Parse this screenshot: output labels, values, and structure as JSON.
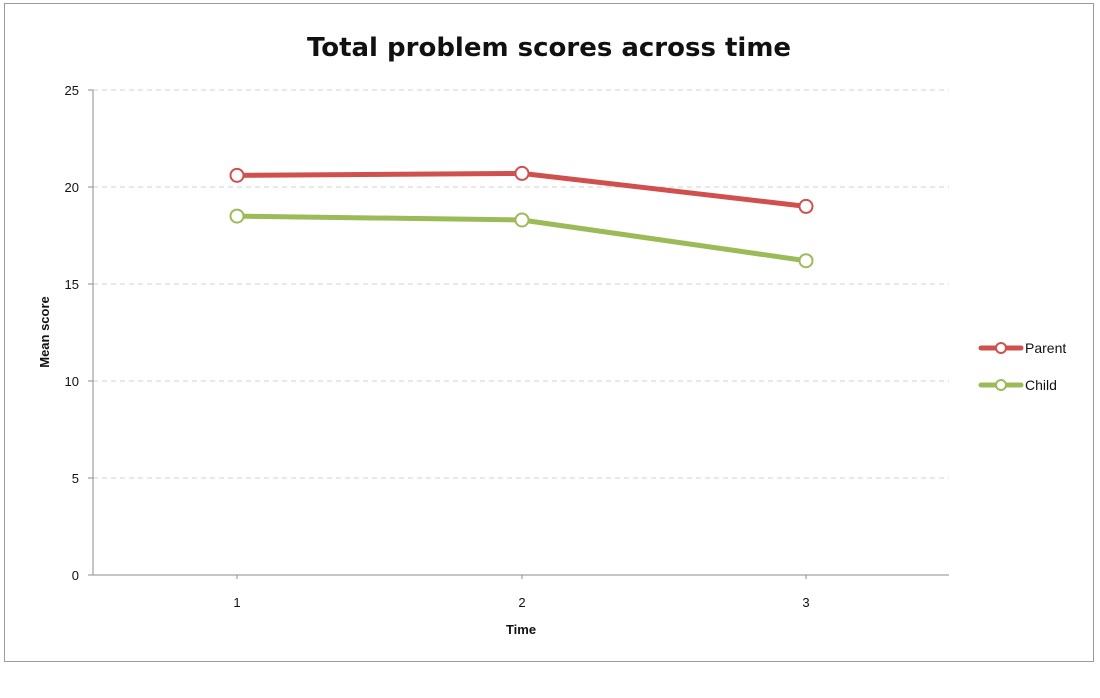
{
  "chart_data": {
    "type": "line",
    "title": "Total problem scores across time",
    "xlabel": "Time",
    "ylabel": "Mean score",
    "categories": [
      "1",
      "2",
      "3"
    ],
    "series": [
      {
        "name": "Parent",
        "values": [
          20.6,
          20.7,
          19.0
        ],
        "color": "#d0504d"
      },
      {
        "name": "Child",
        "values": [
          18.5,
          18.3,
          16.2
        ],
        "color": "#9bbb59"
      }
    ],
    "ylim": [
      0,
      25
    ],
    "yticks": [
      0,
      5,
      10,
      15,
      20,
      25
    ],
    "grid": "horizontal dashed",
    "legend_position": "right",
    "marker": "open circle"
  }
}
